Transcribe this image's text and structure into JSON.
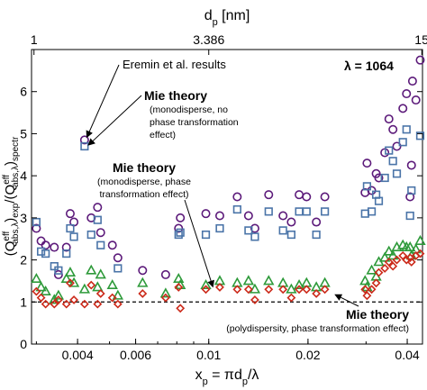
{
  "chart_data": {
    "type": "scatter",
    "title": "",
    "xlabel": "x_p = πd_p/λ",
    "ylabel": "(Q^eff_abs,λ)_exp/(Q^eff_abs,λ)_spectr",
    "top_axis_label": "d_p [nm]",
    "x_scale": "log",
    "xlim": [
      0.0029,
      0.0445
    ],
    "ylim": [
      0,
      7
    ],
    "x_ticks": [
      0.004,
      0.006,
      0.01,
      0.02,
      0.04
    ],
    "x_tick_labels": [
      "0.004",
      "0.006",
      "0.01",
      "0.02",
      "0.04"
    ],
    "y_ticks": [
      0,
      1,
      2,
      3,
      4,
      5,
      6
    ],
    "y_tick_labels": [
      "0",
      "1",
      "2",
      "3",
      "4",
      "5",
      "6"
    ],
    "top_ticks": [
      0.00295,
      0.01,
      0.0443
    ],
    "top_tick_labels": [
      "1",
      "3.386",
      "15"
    ],
    "reference_line": {
      "y": 1,
      "style": "dashed"
    },
    "lambda_label": "λ = 1064",
    "series": [
      {
        "marker": "circle",
        "color": "#5c1a7a",
        "points": [
          [
            0.003,
            2.75
          ],
          [
            0.0031,
            2.45
          ],
          [
            0.0032,
            2.35
          ],
          [
            0.0034,
            2.3
          ],
          [
            0.0035,
            1.65
          ],
          [
            0.0037,
            2.3
          ],
          [
            0.0038,
            3.1
          ],
          [
            0.0039,
            2.9
          ],
          [
            0.0042,
            4.85
          ],
          [
            0.0044,
            3.0
          ],
          [
            0.0046,
            3.25
          ],
          [
            0.0047,
            2.65
          ],
          [
            0.0051,
            2.35
          ],
          [
            0.0053,
            2.05
          ],
          [
            0.0063,
            1.75
          ],
          [
            0.0074,
            1.65
          ],
          [
            0.0081,
            2.75
          ],
          [
            0.0082,
            3.0
          ],
          [
            0.0098,
            3.1
          ],
          [
            0.0108,
            3.05
          ],
          [
            0.0122,
            3.5
          ],
          [
            0.0132,
            3.05
          ],
          [
            0.0138,
            2.75
          ],
          [
            0.0152,
            3.55
          ],
          [
            0.0168,
            3.05
          ],
          [
            0.0178,
            2.9
          ],
          [
            0.0188,
            3.55
          ],
          [
            0.0198,
            3.5
          ],
          [
            0.0212,
            2.9
          ],
          [
            0.0225,
            3.5
          ],
          [
            0.0298,
            3.6
          ],
          [
            0.0302,
            4.3
          ],
          [
            0.0312,
            3.65
          ],
          [
            0.0322,
            4.05
          ],
          [
            0.0328,
            3.95
          ],
          [
            0.0342,
            4.55
          ],
          [
            0.0352,
            5.35
          ],
          [
            0.0362,
            5.1
          ],
          [
            0.0372,
            4.7
          ],
          [
            0.0388,
            5.6
          ],
          [
            0.0398,
            5.95
          ],
          [
            0.0408,
            3.5
          ],
          [
            0.0412,
            4.25
          ],
          [
            0.0415,
            6.25
          ],
          [
            0.0425,
            5.8
          ],
          [
            0.0438,
            6.75
          ]
        ]
      },
      {
        "marker": "square",
        "color": "#4a74a8",
        "points": [
          [
            0.003,
            2.9
          ],
          [
            0.0031,
            2.2
          ],
          [
            0.0032,
            2.15
          ],
          [
            0.0034,
            1.85
          ],
          [
            0.0035,
            1.75
          ],
          [
            0.0037,
            2.15
          ],
          [
            0.0038,
            2.75
          ],
          [
            0.0039,
            2.55
          ],
          [
            0.0042,
            4.7
          ],
          [
            0.0044,
            2.6
          ],
          [
            0.0046,
            2.95
          ],
          [
            0.0047,
            2.35
          ],
          [
            0.0053,
            1.8
          ],
          [
            0.0081,
            2.6
          ],
          [
            0.0082,
            2.65
          ],
          [
            0.0098,
            2.6
          ],
          [
            0.0108,
            2.75
          ],
          [
            0.0122,
            3.2
          ],
          [
            0.0132,
            2.7
          ],
          [
            0.0138,
            2.55
          ],
          [
            0.0152,
            3.15
          ],
          [
            0.0168,
            2.7
          ],
          [
            0.0178,
            2.6
          ],
          [
            0.0188,
            3.15
          ],
          [
            0.0198,
            3.15
          ],
          [
            0.0212,
            2.6
          ],
          [
            0.0225,
            3.15
          ],
          [
            0.0298,
            3.1
          ],
          [
            0.0302,
            3.75
          ],
          [
            0.0312,
            3.15
          ],
          [
            0.0322,
            3.55
          ],
          [
            0.0328,
            3.4
          ],
          [
            0.0342,
            3.95
          ],
          [
            0.0352,
            4.6
          ],
          [
            0.0362,
            4.35
          ],
          [
            0.0372,
            4.05
          ],
          [
            0.0388,
            4.8
          ],
          [
            0.0398,
            5.1
          ],
          [
            0.0408,
            3.05
          ],
          [
            0.0412,
            3.65
          ],
          [
            0.0438,
            4.95
          ]
        ]
      },
      {
        "marker": "triangle",
        "color": "#2e9a3a",
        "points": [
          [
            0.003,
            1.55
          ],
          [
            0.0031,
            1.35
          ],
          [
            0.0032,
            1.25
          ],
          [
            0.0034,
            1.05
          ],
          [
            0.0035,
            1.15
          ],
          [
            0.0037,
            1.55
          ],
          [
            0.0038,
            1.7
          ],
          [
            0.0039,
            1.45
          ],
          [
            0.0042,
            1.3
          ],
          [
            0.0044,
            1.75
          ],
          [
            0.0046,
            1.35
          ],
          [
            0.0047,
            1.65
          ],
          [
            0.0051,
            1.4
          ],
          [
            0.0053,
            1.15
          ],
          [
            0.0063,
            1.45
          ],
          [
            0.0074,
            1.2
          ],
          [
            0.0081,
            1.55
          ],
          [
            0.0082,
            1.4
          ],
          [
            0.0098,
            1.4
          ],
          [
            0.0108,
            1.5
          ],
          [
            0.0122,
            1.45
          ],
          [
            0.0132,
            1.5
          ],
          [
            0.0138,
            1.3
          ],
          [
            0.0152,
            1.5
          ],
          [
            0.0168,
            1.45
          ],
          [
            0.0178,
            1.3
          ],
          [
            0.0188,
            1.4
          ],
          [
            0.0198,
            1.45
          ],
          [
            0.0212,
            1.35
          ],
          [
            0.0225,
            1.45
          ],
          [
            0.0298,
            1.5
          ],
          [
            0.0302,
            1.35
          ],
          [
            0.0312,
            1.75
          ],
          [
            0.0322,
            1.6
          ],
          [
            0.0328,
            1.95
          ],
          [
            0.0342,
            2.05
          ],
          [
            0.0352,
            2.2
          ],
          [
            0.0362,
            2.1
          ],
          [
            0.0372,
            2.3
          ],
          [
            0.0388,
            2.35
          ],
          [
            0.0398,
            2.3
          ],
          [
            0.0408,
            2.3
          ],
          [
            0.0412,
            2.1
          ],
          [
            0.0425,
            2.25
          ],
          [
            0.0438,
            2.45
          ]
        ]
      },
      {
        "marker": "diamond",
        "color": "#cc2a1a",
        "points": [
          [
            0.003,
            1.25
          ],
          [
            0.0031,
            1.1
          ],
          [
            0.0032,
            0.95
          ],
          [
            0.0034,
            0.95
          ],
          [
            0.0035,
            1.05
          ],
          [
            0.0037,
            0.95
          ],
          [
            0.0038,
            1.45
          ],
          [
            0.0039,
            1.05
          ],
          [
            0.0042,
            0.95
          ],
          [
            0.0044,
            1.4
          ],
          [
            0.0046,
            0.95
          ],
          [
            0.0047,
            1.2
          ],
          [
            0.0051,
            1.1
          ],
          [
            0.0053,
            0.95
          ],
          [
            0.0063,
            1.2
          ],
          [
            0.0074,
            1.1
          ],
          [
            0.0081,
            1.35
          ],
          [
            0.0082,
            0.85
          ],
          [
            0.0098,
            1.3
          ],
          [
            0.0108,
            1.35
          ],
          [
            0.0122,
            1.3
          ],
          [
            0.0132,
            1.3
          ],
          [
            0.0138,
            1.05
          ],
          [
            0.0152,
            1.3
          ],
          [
            0.0168,
            1.3
          ],
          [
            0.0178,
            1.1
          ],
          [
            0.0188,
            1.3
          ],
          [
            0.0198,
            1.3
          ],
          [
            0.0212,
            1.2
          ],
          [
            0.0225,
            1.3
          ],
          [
            0.0298,
            1.3
          ],
          [
            0.0302,
            1.15
          ],
          [
            0.0312,
            1.3
          ],
          [
            0.0322,
            1.45
          ],
          [
            0.0328,
            1.7
          ],
          [
            0.0342,
            1.8
          ],
          [
            0.0352,
            1.95
          ],
          [
            0.0362,
            1.85
          ],
          [
            0.0372,
            2.0
          ],
          [
            0.0388,
            2.1
          ],
          [
            0.0398,
            2.0
          ],
          [
            0.0408,
            2.05
          ],
          [
            0.0412,
            1.95
          ],
          [
            0.0425,
            2.1
          ],
          [
            0.0438,
            2.15
          ]
        ]
      }
    ],
    "annotations": [
      {
        "id": "eremin",
        "lines": [
          "Eremin et al. results"
        ],
        "styles": [
          "normal"
        ]
      },
      {
        "id": "mie1",
        "lines": [
          "Mie theory",
          "(monodisperse, no",
          "phase transformation",
          "effect)"
        ],
        "styles": [
          "bold",
          "small",
          "small",
          "small"
        ]
      },
      {
        "id": "mie2",
        "lines": [
          "Mie theory",
          "(monodisperse, phase",
          "transformation effect)"
        ],
        "styles": [
          "bold",
          "small",
          "small"
        ]
      },
      {
        "id": "mie3",
        "lines": [
          "Mie theory",
          "(polydispersity, phase transformation effect)"
        ],
        "styles": [
          "bold",
          "small"
        ]
      }
    ]
  }
}
